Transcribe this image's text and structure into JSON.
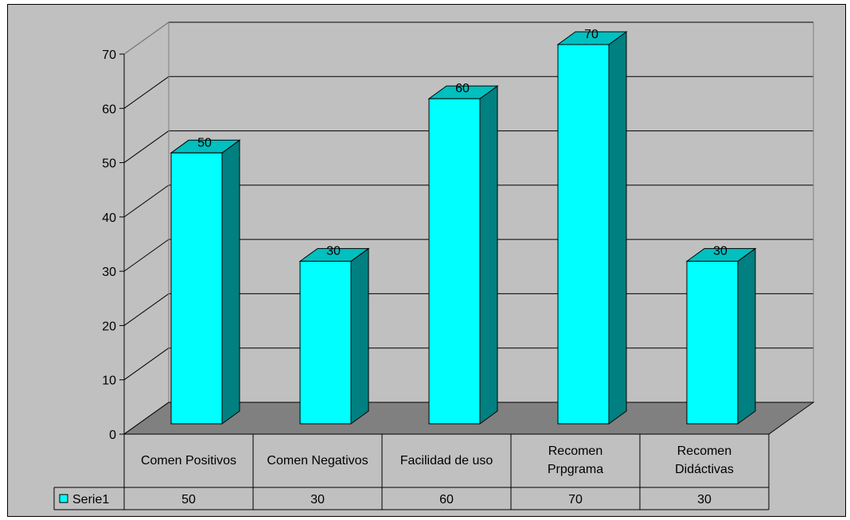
{
  "chart_data": {
    "type": "bar",
    "categories": [
      "Comen Positivos",
      "Comen Negativos",
      "Facilidad de uso",
      "Recomen Prpgrama",
      "Recomen Didáctivas"
    ],
    "category_label_lines": [
      [
        "Comen Positivos"
      ],
      [
        "Comen Negativos"
      ],
      [
        "Facilidad de uso"
      ],
      [
        "Recomen",
        "Prpgrama"
      ],
      [
        "Recomen",
        "Didáctivas"
      ]
    ],
    "series": [
      {
        "name": "Serie1",
        "values": [
          50,
          30,
          60,
          70,
          30
        ]
      }
    ],
    "data_labels": [
      "50",
      "30",
      "60",
      "70",
      "30"
    ],
    "table_values": [
      "50",
      "30",
      "60",
      "70",
      "30"
    ],
    "ylim": [
      0,
      70
    ],
    "yticks": [
      "0",
      "10",
      "20",
      "30",
      "40",
      "50",
      "60",
      "70"
    ],
    "grid": true,
    "view": "3d",
    "data_table": true,
    "colors": {
      "plot_background": "#c0c0c0",
      "floor": "#808080",
      "bar_front": "#00ffff",
      "bar_top": "#00c0c0",
      "bar_side": "#008080",
      "legend_key": "#00ffff"
    }
  }
}
